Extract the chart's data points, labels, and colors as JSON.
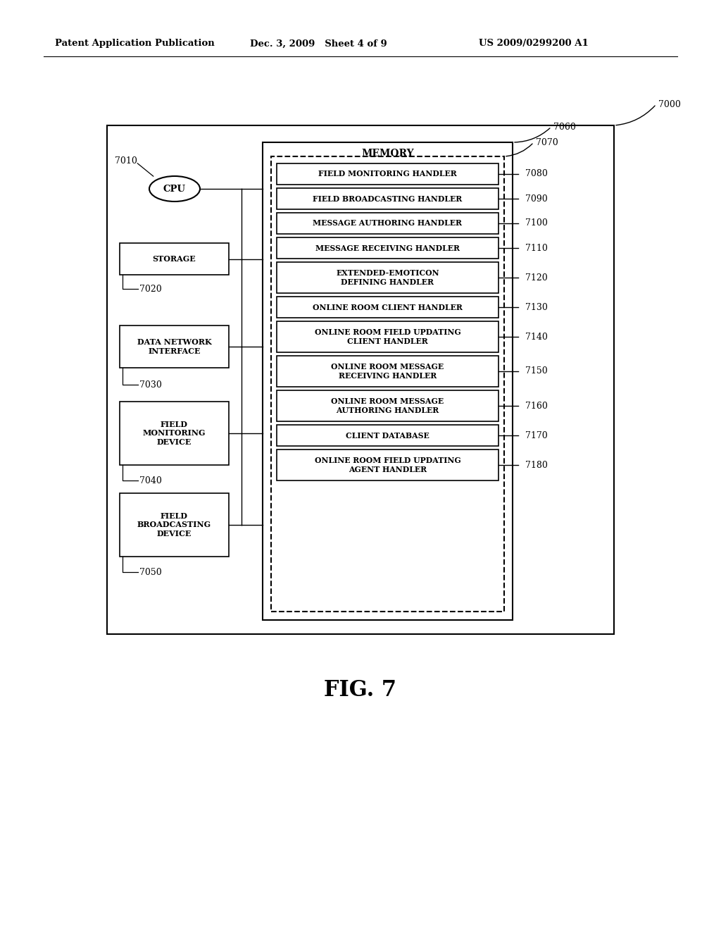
{
  "title_left": "Patent Application Publication",
  "title_center": "Dec. 3, 2009   Sheet 4 of 9",
  "title_right": "US 2009/0299200 A1",
  "fig_label": "FIG. 7",
  "main_label": "7000",
  "memory_label": "MEMORY",
  "memory_sublabel": "7060",
  "inner_dashed_label": "7070",
  "cpu_label": "CPU",
  "cpu_ref": "7010",
  "storage_label": "STORAGE",
  "storage_ref": "7020",
  "dni_label": "DATA NETWORK\nINTERFACE",
  "dni_ref": "7030",
  "fmd_label": "FIELD\nMONITORING\nDEVICE",
  "fmd_ref": "7040",
  "fbd_label": "FIELD\nBROADCASTING\nDEVICE",
  "fbd_ref": "7050",
  "handlers": [
    {
      "label": "FIELD MONITORING HANDLER",
      "ref": "7080",
      "lines": 1
    },
    {
      "label": "FIELD BROADCASTING HANDLER",
      "ref": "7090",
      "lines": 1
    },
    {
      "label": "MESSAGE AUTHORING HANDLER",
      "ref": "7100",
      "lines": 1
    },
    {
      "label": "MESSAGE RECEIVING HANDLER",
      "ref": "7110",
      "lines": 1
    },
    {
      "label": "EXTENDED-EMOTICON\nDEFINING HANDLER",
      "ref": "7120",
      "lines": 2
    },
    {
      "label": "ONLINE ROOM CLIENT HANDLER",
      "ref": "7130",
      "lines": 1
    },
    {
      "label": "ONLINE ROOM FIELD UPDATING\nCLIENT HANDLER",
      "ref": "7140",
      "lines": 2
    },
    {
      "label": "ONLINE ROOM MESSAGE\nRECEIVING HANDLER",
      "ref": "7150",
      "lines": 2
    },
    {
      "label": "ONLINE ROOM MESSAGE\nAUTHORING HANDLER",
      "ref": "7160",
      "lines": 2
    },
    {
      "label": "CLIENT DATABASE",
      "ref": "7170",
      "lines": 1
    },
    {
      "label": "ONLINE ROOM FIELD UPDATING\nAGENT HANDLER",
      "ref": "7180",
      "lines": 2
    }
  ]
}
